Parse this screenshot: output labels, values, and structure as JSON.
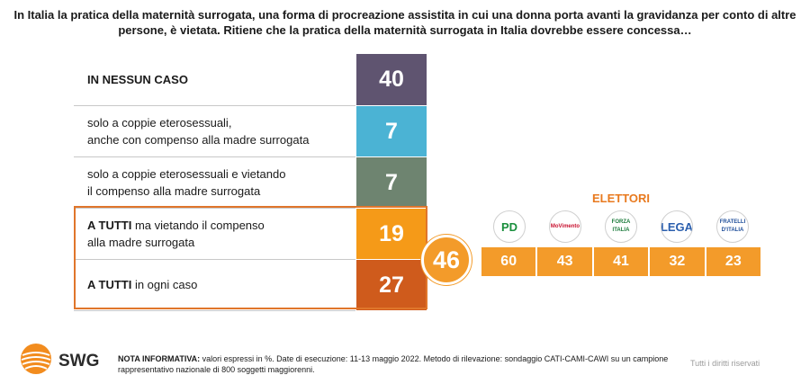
{
  "question": "In Italia la pratica della maternità surrogata, una forma di procreazione assistita in cui una donna porta avanti la gravidanza per conto di altre persone, è vietata. Ritiene che la pratica della maternità surrogata in Italia dovrebbe essere concessa…",
  "chart_data": {
    "type": "bar",
    "title": "",
    "categories": [
      "IN NESSUN CASO",
      "solo a coppie eterosessuali, anche con compenso alla madre surrogata",
      "solo a coppie eterosessuali e vietando il compenso alla madre surrogata",
      "A TUTTI ma vietando il compenso alla madre surrogata",
      "A TUTTI in ogni caso"
    ],
    "values": [
      40,
      7,
      7,
      19,
      27
    ],
    "unit": "%",
    "colors": [
      "#5f5470",
      "#4bb3d4",
      "#6e8470",
      "#f59a18",
      "#cf5b1c"
    ],
    "rows": [
      {
        "bold": "IN NESSUN CASO",
        "rest_line1": "",
        "rest_line2": "",
        "value": 40
      },
      {
        "bold": "",
        "rest_line1": "solo a coppie eterosessuali,",
        "rest_line2": "anche con compenso alla madre surrogata",
        "value": 7
      },
      {
        "bold": "",
        "rest_line1": "solo a coppie eterosessuali e vietando",
        "rest_line2": "il compenso alla madre surrogata",
        "value": 7
      },
      {
        "bold": "A TUTTI",
        "rest_line1": " ma vietando il compenso",
        "rest_line2": "alla madre surrogata",
        "value": 19
      },
      {
        "bold": "A TUTTI",
        "rest_line1": " in ogni caso",
        "rest_line2": "",
        "value": 27
      }
    ],
    "combined_total": 46,
    "voters": {
      "title": "ELETTORI",
      "parties": [
        {
          "logo_icon": "pd-logo-icon",
          "logo_text": "PD",
          "logo_color": "#1a8f3d",
          "value": 60
        },
        {
          "logo_icon": "m5s-logo-icon",
          "logo_text": "MoVimento",
          "logo_color": "#c8102e",
          "value": 43
        },
        {
          "logo_icon": "forza-italia-logo-icon",
          "logo_text": "FORZA ITALIA",
          "logo_color": "#1a7a3a",
          "value": 41
        },
        {
          "logo_icon": "lega-logo-icon",
          "logo_text": "LEGA",
          "logo_color": "#2b5fae",
          "value": 32
        },
        {
          "logo_icon": "fratelli-italia-logo-icon",
          "logo_text": "FRATELLI D'ITALIA",
          "logo_color": "#1f4e9a",
          "value": 23
        }
      ]
    }
  },
  "footer": {
    "brand": "SWG",
    "note_label": "NOTA INFORMATIVA:",
    "note_text": " valori espressi in %. Date di esecuzione: 11-13 maggio 2022. Metodo di rilevazione: sondaggio CATI-CAMI-CAWI su un campione rappresentativo nazionale di 800 soggetti maggiorenni.",
    "rights": "Tutti i diritti riservati"
  }
}
